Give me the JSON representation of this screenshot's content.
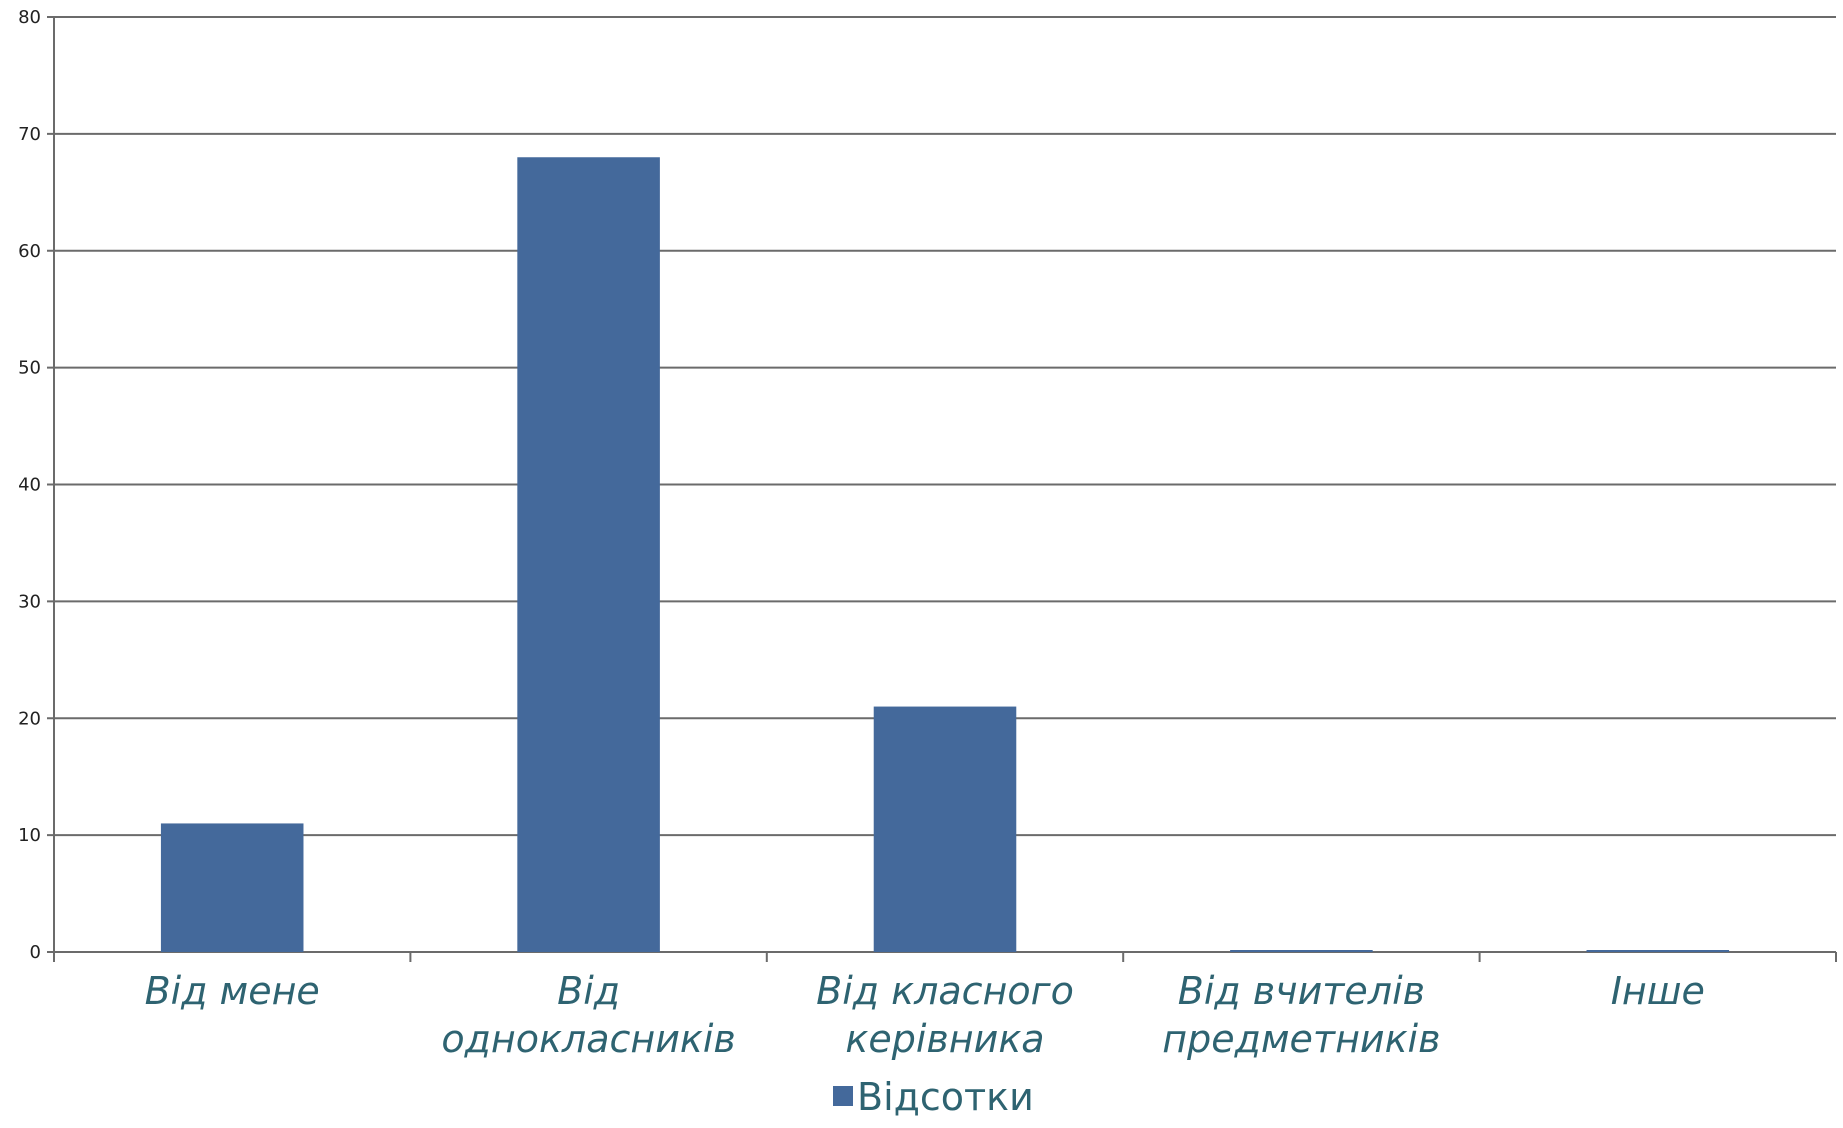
{
  "chart_data": {
    "type": "bar",
    "categories": [
      [
        "Від мене"
      ],
      [
        "Від",
        "однокласників"
      ],
      [
        "Від класного",
        "керівника"
      ],
      [
        "Від вчителів",
        "предметників"
      ],
      [
        "Інше"
      ]
    ],
    "series": [
      {
        "name": "Відсотки",
        "values": [
          11,
          68,
          21,
          0,
          0
        ],
        "color": "#44699b"
      }
    ],
    "yticks": [
      "0",
      "10",
      "20",
      "30",
      "40",
      "50",
      "60",
      "70",
      "80"
    ],
    "ylim": [
      0,
      80
    ],
    "grid": true,
    "legend_position": "bottom",
    "colors": {
      "bar": "#44699b",
      "grid": "#6b6b6b",
      "axis": "#6b6b6b",
      "tick_text": "#222222",
      "category_text": "#2e6371"
    }
  }
}
